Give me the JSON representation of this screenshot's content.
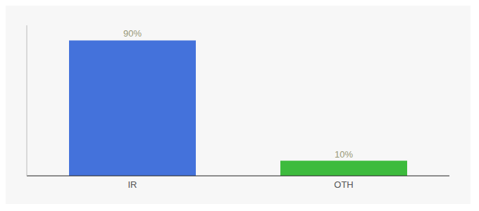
{
  "chart_data": {
    "type": "bar",
    "categories": [
      "IR",
      "OTH"
    ],
    "values": [
      90,
      10
    ],
    "colors": [
      "#4472db",
      "#3dbb3d"
    ],
    "value_labels": [
      "90%",
      "10%"
    ],
    "data_labels": true,
    "ylim": [
      0,
      100
    ],
    "tick_labels": "x"
  }
}
